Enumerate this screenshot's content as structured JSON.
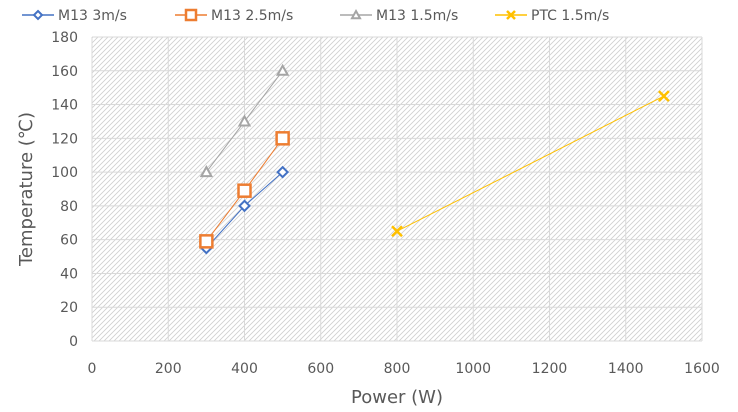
{
  "chart_data": {
    "type": "scatter",
    "title": "",
    "xlabel": "Power (W)",
    "ylabel": "Temperature (℃)",
    "xlim": [
      0,
      1600
    ],
    "ylim": [
      0,
      180
    ],
    "xticks": [
      0,
      200,
      400,
      600,
      800,
      1000,
      1200,
      1400,
      1600
    ],
    "yticks": [
      0,
      20,
      40,
      60,
      80,
      100,
      120,
      140,
      160,
      180
    ],
    "grid": true,
    "legend_position": "top",
    "series": [
      {
        "name": "M13 3m/s",
        "color": "#4472C4",
        "marker": "diamond-icon",
        "x": [
          300,
          400,
          500
        ],
        "y": [
          55,
          80,
          100
        ]
      },
      {
        "name": "M13 2.5m/s",
        "color": "#ED7D31",
        "marker": "square-icon",
        "x": [
          300,
          400,
          500
        ],
        "y": [
          59,
          89,
          120
        ]
      },
      {
        "name": "M13 1.5m/s",
        "color": "#A5A5A5",
        "marker": "triangle-icon",
        "x": [
          300,
          400,
          500
        ],
        "y": [
          100,
          130,
          160
        ]
      },
      {
        "name": "PTC 1.5m/s",
        "color": "#FFC000",
        "marker": "x-mark-icon",
        "x": [
          800,
          1500
        ],
        "y": [
          65,
          145
        ]
      }
    ]
  }
}
